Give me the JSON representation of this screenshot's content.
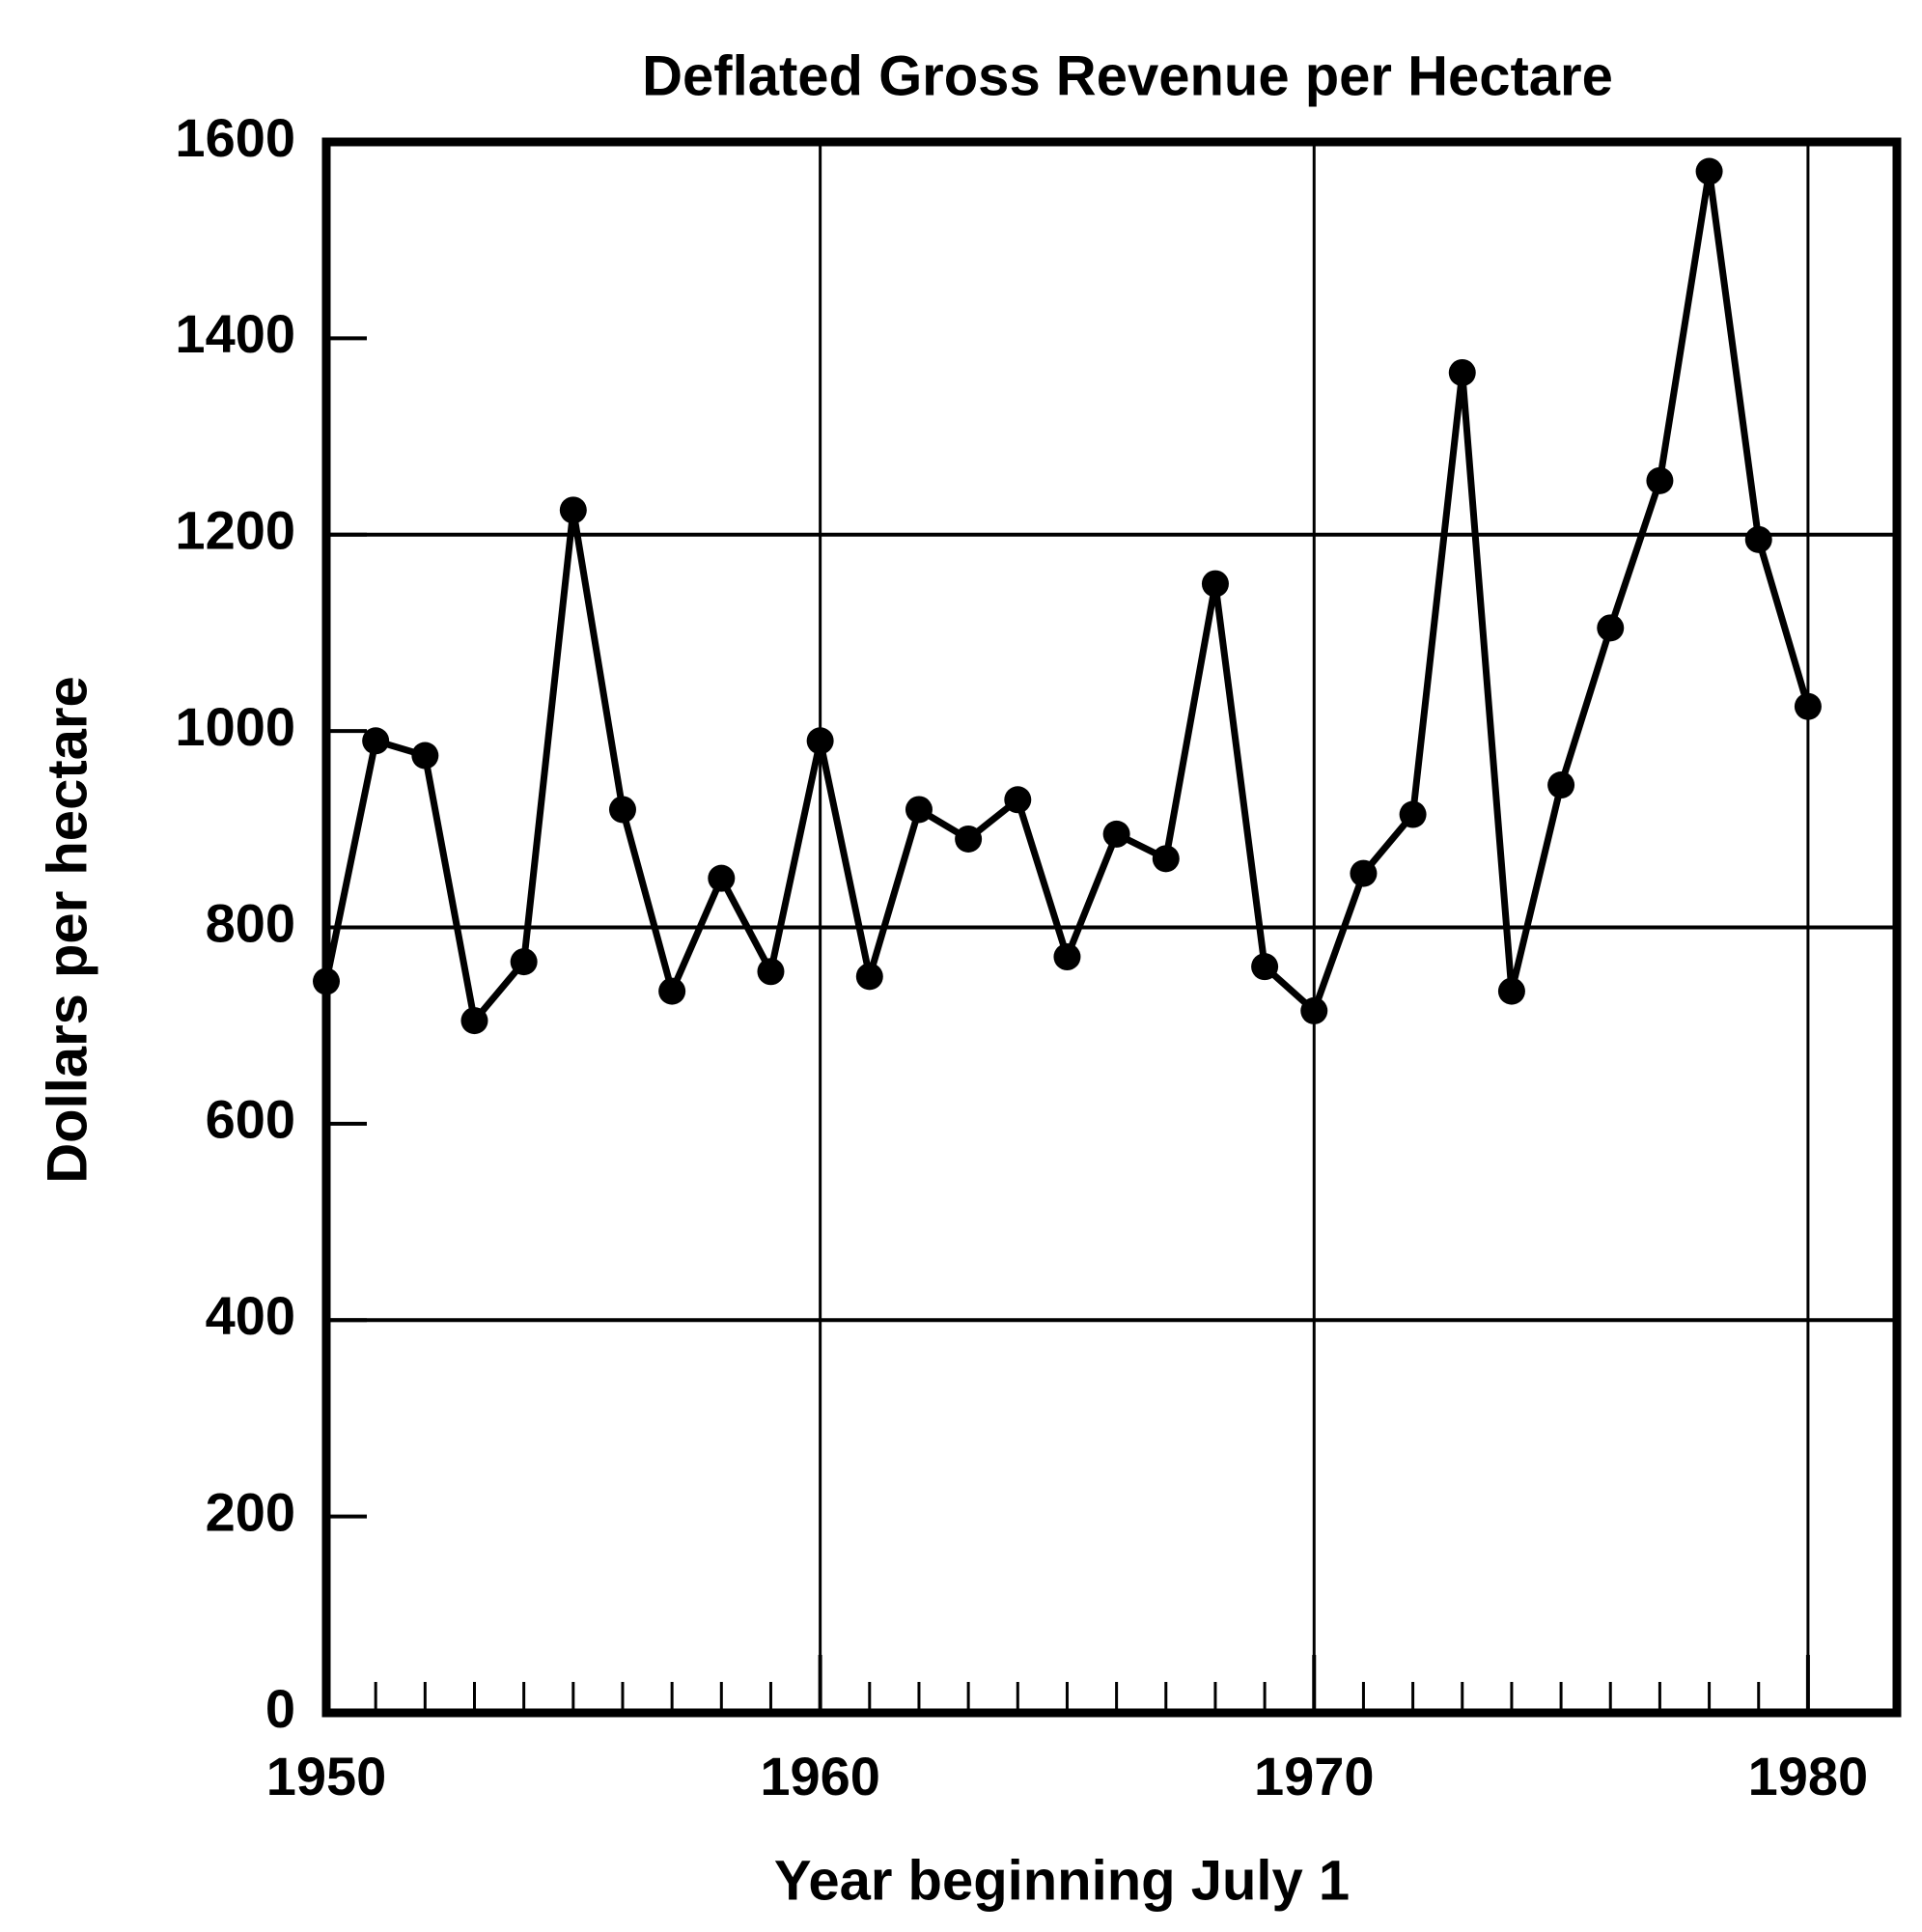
{
  "chart_data": {
    "type": "line",
    "title": "Deflated Gross Revenue per Hectare",
    "x_label": "Year beginning July 1",
    "y_label": "Dollars per hectare",
    "x": [
      1950,
      1951,
      1952,
      1953,
      1954,
      1955,
      1956,
      1957,
      1958,
      1959,
      1960,
      1961,
      1962,
      1963,
      1964,
      1965,
      1966,
      1967,
      1968,
      1969,
      1970,
      1971,
      1972,
      1973,
      1974,
      1975,
      1976,
      1977,
      1978,
      1979,
      1980
    ],
    "series": [
      {
        "name": "Deflated Gross Revenue per Hectare",
        "color": "#000000",
        "values": [
          745,
          990,
          975,
          705,
          765,
          1225,
          920,
          735,
          850,
          755,
          990,
          750,
          920,
          890,
          930,
          770,
          895,
          870,
          1150,
          760,
          715,
          855,
          915,
          1365,
          735,
          945,
          1105,
          1255,
          1570,
          1195,
          1025
        ]
      }
    ],
    "xlim": [
      1950,
      1981.8
    ],
    "xticks": [
      1950,
      1960,
      1970,
      1980
    ],
    "ylim": [
      0,
      1600
    ],
    "yticks": [
      0,
      200,
      400,
      600,
      800,
      1000,
      1200,
      1400,
      1600
    ],
    "xgrid": [
      1960,
      1970,
      1980
    ],
    "ygrid": [
      400,
      800,
      1200
    ]
  }
}
